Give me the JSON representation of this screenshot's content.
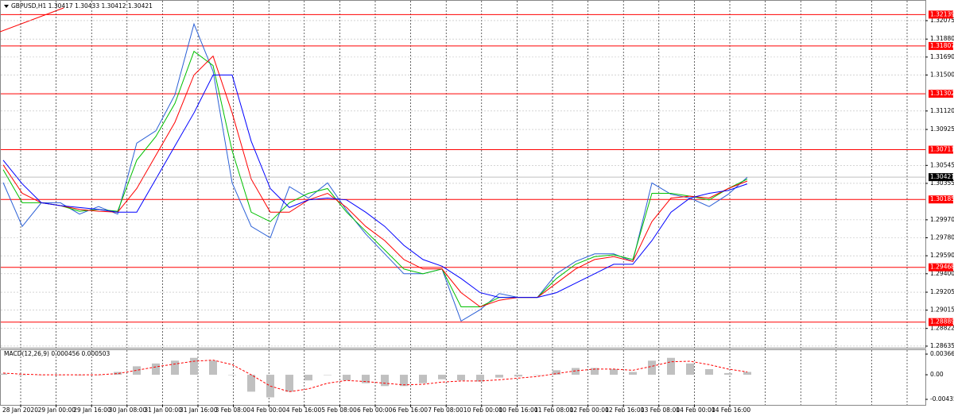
{
  "chart_data": [
    {
      "type": "line",
      "title": "GBPUSD,H1  1.30417 1.30433 1.30412 1.30421",
      "series": [
        {
          "color": "#2a5fd6",
          "values": [
            1.30363,
            1.299,
            1.3015,
            1.3015,
            1.3003,
            1.3011,
            1.3003,
            1.3078,
            1.3091,
            1.3129,
            1.3204,
            1.3154,
            1.3036,
            1.299,
            1.2978,
            1.3032,
            1.302,
            1.3036,
            1.3007,
            1.2982,
            1.2961,
            1.294,
            1.294,
            1.2945,
            1.289,
            1.2902,
            1.2919,
            1.2915,
            1.2915,
            1.294,
            1.2953,
            1.2961,
            1.2961,
            1.2953,
            1.3036,
            1.3024,
            1.302,
            1.3011,
            1.3024,
            1.3042
          ]
        },
        {
          "color": "#00c000",
          "values": [
            1.305,
            1.3015,
            1.3015,
            1.3012,
            1.3006,
            1.3008,
            1.3006,
            1.306,
            1.3085,
            1.312,
            1.3175,
            1.316,
            1.307,
            1.3005,
            1.2995,
            1.3015,
            1.3025,
            1.303,
            1.3005,
            1.2985,
            1.2965,
            1.2945,
            1.294,
            1.2945,
            1.2905,
            1.2905,
            1.2915,
            1.2915,
            1.2915,
            1.2935,
            1.295,
            1.2958,
            1.296,
            1.2955,
            1.3025,
            1.3025,
            1.3022,
            1.3018,
            1.303,
            1.304
          ]
        },
        {
          "color": "#ff0000",
          "values": [
            1.3055,
            1.3025,
            1.3015,
            1.3012,
            1.3008,
            1.3006,
            1.3005,
            1.303,
            1.3065,
            1.31,
            1.315,
            1.317,
            1.311,
            1.304,
            1.3005,
            1.3005,
            1.3018,
            1.3025,
            1.301,
            1.299,
            1.2975,
            1.2955,
            1.2945,
            1.2945,
            1.292,
            1.2905,
            1.2912,
            1.2915,
            1.2915,
            1.293,
            1.2945,
            1.2955,
            1.2958,
            1.2953,
            1.2995,
            1.302,
            1.3022,
            1.302,
            1.303,
            1.3038
          ]
        },
        {
          "color": "#0000ff",
          "values": [
            1.306,
            1.3035,
            1.3015,
            1.3012,
            1.301,
            1.3008,
            1.3005,
            1.3005,
            1.304,
            1.3075,
            1.311,
            1.315,
            1.315,
            1.308,
            1.303,
            1.301,
            1.3018,
            1.302,
            1.3018,
            1.3005,
            1.299,
            1.297,
            1.2955,
            1.2948,
            1.2935,
            1.292,
            1.2915,
            1.2915,
            1.2915,
            1.292,
            1.293,
            1.294,
            1.295,
            1.295,
            1.2975,
            1.3005,
            1.302,
            1.3025,
            1.3028,
            1.3035
          ]
        }
      ],
      "levels": [
        1.32139,
        1.31807,
        1.31302,
        1.30711,
        1.30185,
        1.29468,
        1.28889
      ],
      "level_color": "#ff0000",
      "current_price": 1.30421,
      "x_labels": [
        "28 Jan 2020",
        "29 Jan 00:00",
        "29 Jan 16:00",
        "30 Jan 08:00",
        "31 Jan 00:00",
        "31 Jan 16:00",
        "3 Feb 08:00",
        "4 Feb 00:00",
        "4 Feb 16:00",
        "5 Feb 08:00",
        "6 Feb 00:00",
        "6 Feb 16:00",
        "7 Feb 08:00",
        "10 Feb 00:00",
        "10 Feb 16:00",
        "11 Feb 08:00",
        "12 Feb 00:00",
        "12 Feb 16:00",
        "13 Feb 08:00",
        "14 Feb 00:00",
        "14 Feb 16:00"
      ],
      "ylim": [
        1.28618,
        1.32293
      ],
      "yticks": [
        1.32075,
        {
          "value": 1.3188,
          "label": "1.31880"
        },
        {
          "value": 1.3169,
          "label": "1.31690"
        },
        {
          "value": 1.315,
          "label": "1.31500"
        },
        {
          "value": 1.3112,
          "label": "1.31120"
        },
        1.30925,
        1.30545,
        1.30355,
        {
          "value": 1.2997,
          "label": "1.29970"
        },
        {
          "value": 1.2978,
          "label": "1.29780"
        },
        {
          "value": 1.2959,
          "label": "1.29590"
        },
        {
          "value": 1.294,
          "label": "1.29400"
        },
        1.29205,
        1.29015,
        1.28822,
        1.28635
      ],
      "grid": true
    },
    {
      "type": "bar",
      "title": "MACD(12,26,9) 0.000456 0.000503",
      "color": "#c0c0c0",
      "values": [
        0.0002,
        0.0,
        0.0,
        0.0,
        -0.0001,
        0.0,
        0.0005,
        0.0015,
        0.002,
        0.0025,
        0.003,
        0.0025,
        0.0,
        -0.003,
        -0.004,
        -0.003,
        -0.001,
        0.0,
        -0.001,
        -0.0015,
        -0.002,
        -0.002,
        -0.0015,
        -0.0008,
        -0.001,
        -0.0012,
        -0.0005,
        -0.0003,
        0.0,
        0.0008,
        0.0012,
        0.0012,
        0.001,
        0.0005,
        0.0025,
        0.003,
        0.002,
        0.001,
        0.0003,
        0.0005
      ],
      "series": [
        {
          "color": "#ff0000",
          "values": [
            0.0003,
            0.0001,
            0.0,
            0.0,
            0.0,
            0.0,
            0.0002,
            0.0008,
            0.0014,
            0.0019,
            0.0024,
            0.0026,
            0.0018,
            0.0,
            -0.002,
            -0.003,
            -0.0025,
            -0.0015,
            -0.001,
            -0.0012,
            -0.0015,
            -0.0018,
            -0.0017,
            -0.0013,
            -0.0011,
            -0.0011,
            -0.0009,
            -0.0006,
            -0.0003,
            0.0002,
            0.0007,
            0.001,
            0.001,
            0.0008,
            0.0015,
            0.0023,
            0.0024,
            0.0018,
            0.001,
            0.0005
          ]
        }
      ],
      "ylim": [
        -0.00534,
        0.00451
      ],
      "yticks": [
        0.003662,
        {
          "value": 0,
          "label": "0.00"
        },
        -0.004358
      ]
    }
  ]
}
